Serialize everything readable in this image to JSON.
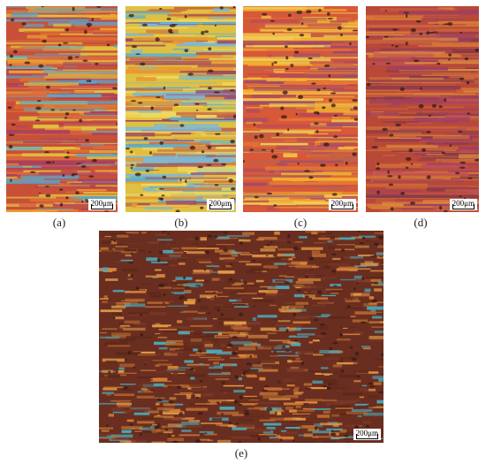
{
  "panels": [
    {
      "caption": "(a)",
      "scale_label": "200μm",
      "palette": [
        "#c85038",
        "#e07030",
        "#f0a030",
        "#a84060",
        "#e0c040",
        "#5aa8c8",
        "#d86840"
      ]
    },
    {
      "caption": "(b)",
      "scale_label": "200μm",
      "palette": [
        "#e0c040",
        "#f0d860",
        "#7ab8d8",
        "#c86a40",
        "#a04860",
        "#e89a30",
        "#5ab0d0"
      ]
    },
    {
      "caption": "(c)",
      "scale_label": "200μm",
      "palette": [
        "#d85838",
        "#e87830",
        "#f0b030",
        "#b84a58",
        "#f0d050",
        "#c06048",
        "#9a4a70"
      ]
    },
    {
      "caption": "(d)",
      "scale_label": "200μm",
      "palette": [
        "#b84838",
        "#c86038",
        "#a04060",
        "#d87838",
        "#8a3a48",
        "#c05050",
        "#e09040"
      ]
    },
    {
      "caption": "(e)",
      "scale_label": "200μm",
      "palette": [
        "#6a2e20",
        "#7a3828",
        "#d8843a",
        "#e09a48",
        "#4aa8b8",
        "#5a2818",
        "#b86a30"
      ]
    }
  ]
}
